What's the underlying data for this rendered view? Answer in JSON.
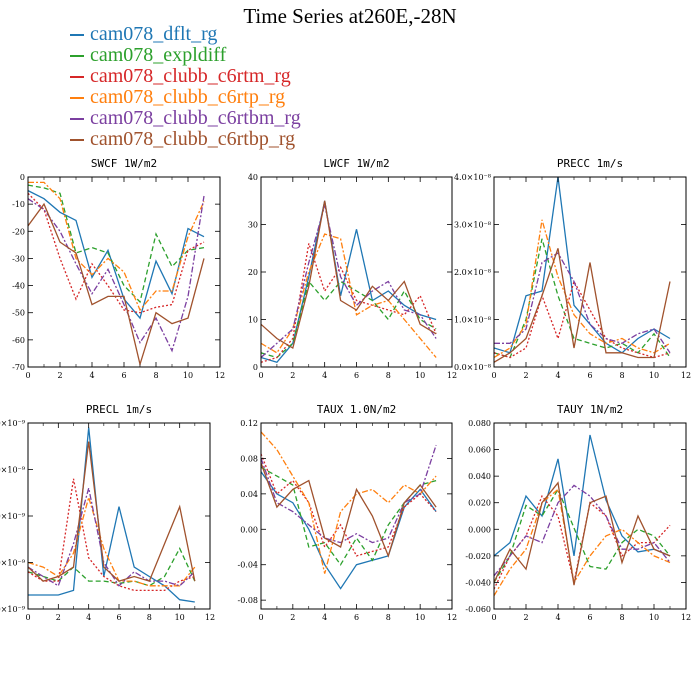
{
  "title": "Time Series at260E,-28N",
  "colors": {
    "cam078_dflt_rg": "#1f77b4",
    "cam078_expldiff": "#2ca02c",
    "cam078_clubb_c6rtm_rg": "#d62728",
    "cam078_clubb_c6rtp_rg": "#ff7f0e",
    "cam078_clubb_c6rtbm_rg": "#7b3fa0",
    "cam078_clubb_c6rtbp_rg": "#a0522d"
  },
  "legend": [
    {
      "name": "cam078_dflt_rg",
      "color": "#1f77b4"
    },
    {
      "name": "cam078_expldiff",
      "color": "#2ca02c"
    },
    {
      "name": "cam078_clubb_c6rtm_rg",
      "color": "#d62728"
    },
    {
      "name": "cam078_clubb_c6rtp_rg",
      "color": "#ff7f0e"
    },
    {
      "name": "cam078_clubb_c6rtbm_rg",
      "color": "#7b3fa0"
    },
    {
      "name": "cam078_clubb_c6rtbp_rg",
      "color": "#a0522d"
    }
  ],
  "chart_data": [
    {
      "type": "line",
      "title": "SWCF  1W/m2",
      "x": [
        0,
        1,
        2,
        3,
        4,
        5,
        6,
        7,
        8,
        9,
        10,
        11
      ],
      "xlim": [
        0,
        12
      ],
      "xticks": [
        0,
        2,
        4,
        6,
        8,
        10,
        12
      ],
      "ylim": [
        -70,
        0
      ],
      "yticks": [
        -70,
        -60,
        -50,
        -40,
        -30,
        -20,
        -10,
        0
      ],
      "ytick_labels": [
        "-70",
        "-60",
        "-50",
        "-40",
        "-30",
        "-20",
        "-10",
        "0"
      ],
      "series": [
        {
          "name": "cam078_dflt_rg",
          "style": "solid",
          "values": [
            -5,
            -8,
            -13,
            -16,
            -37,
            -27,
            -45,
            -52,
            -31,
            -43,
            -19,
            -22
          ]
        },
        {
          "name": "cam078_expldiff",
          "style": "dashed",
          "values": [
            -3,
            -4,
            -6,
            -28,
            -26,
            -28,
            -40,
            -46,
            -21,
            -33,
            -27,
            -26
          ]
        },
        {
          "name": "cam078_clubb_c6rtm_rg",
          "style": "dotted",
          "values": [
            -6,
            -12,
            -30,
            -45,
            -32,
            -40,
            -49,
            -50,
            -48,
            -47,
            -27,
            -24
          ]
        },
        {
          "name": "cam078_clubb_c6rtp_rg",
          "style": "dashdot",
          "values": [
            -2,
            -2,
            -8,
            -30,
            -36,
            -30,
            -35,
            -49,
            -42,
            -42,
            -22,
            -9
          ]
        },
        {
          "name": "cam078_clubb_c6rtbm_rg",
          "style": "dashdot",
          "values": [
            -8,
            -12,
            -20,
            -32,
            -43,
            -34,
            -47,
            -61,
            -52,
            -64,
            -44,
            -7
          ]
        },
        {
          "name": "cam078_clubb_c6rtbp_rg",
          "style": "solid",
          "values": [
            -18,
            -10,
            -24,
            -28,
            -47,
            -44,
            -44,
            -69,
            -50,
            -54,
            -52,
            -30
          ]
        }
      ]
    },
    {
      "type": "line",
      "title": "LWCF  1W/m2",
      "x": [
        0,
        1,
        2,
        3,
        4,
        5,
        6,
        7,
        8,
        9,
        10,
        11
      ],
      "xlim": [
        0,
        12
      ],
      "xticks": [
        0,
        2,
        4,
        6,
        8,
        10,
        12
      ],
      "ylim": [
        0,
        40
      ],
      "yticks": [
        0,
        10,
        20,
        30,
        40
      ],
      "ytick_labels": [
        "0",
        "10",
        "20",
        "30",
        "40"
      ],
      "series": [
        {
          "name": "cam078_dflt_rg",
          "style": "solid",
          "values": [
            2,
            1,
            5,
            19,
            35,
            15,
            29,
            14,
            16,
            13,
            11,
            10
          ]
        },
        {
          "name": "cam078_expldiff",
          "style": "dashed",
          "values": [
            3,
            2,
            5,
            18,
            14,
            18,
            16,
            14,
            10,
            16,
            10,
            8
          ]
        },
        {
          "name": "cam078_clubb_c6rtm_rg",
          "style": "dotted",
          "values": [
            1,
            2,
            6,
            26,
            16,
            21,
            14,
            13,
            12,
            11,
            15,
            7
          ]
        },
        {
          "name": "cam078_clubb_c6rtp_rg",
          "style": "dashdot",
          "values": [
            5,
            3,
            8,
            20,
            28,
            27,
            11,
            13,
            14,
            10,
            6,
            2
          ]
        },
        {
          "name": "cam078_clubb_c6rtbm_rg",
          "style": "dashdot",
          "values": [
            2,
            5,
            8,
            22,
            34,
            19,
            13,
            16,
            18,
            12,
            11,
            6
          ]
        },
        {
          "name": "cam078_clubb_c6rtbp_rg",
          "style": "solid",
          "values": [
            9,
            6,
            4,
            17,
            35,
            14,
            12,
            17,
            14,
            18,
            9,
            7
          ]
        }
      ]
    },
    {
      "type": "line",
      "title": "PRECC  1m/s",
      "x": [
        0,
        1,
        2,
        3,
        4,
        5,
        6,
        7,
        8,
        9,
        10,
        11
      ],
      "xlim": [
        0,
        12
      ],
      "xticks": [
        0,
        2,
        4,
        6,
        8,
        10,
        12
      ],
      "ylim": [
        0,
        4e-08
      ],
      "yticks": [
        0,
        1e-08,
        2e-08,
        3e-08,
        4e-08
      ],
      "ytick_labels": [
        "0.0×10⁻⁸",
        "1.0×10⁻⁸",
        "2.0×10⁻⁸",
        "3.0×10⁻⁸",
        "4.0×10⁻⁸"
      ],
      "series": [
        {
          "name": "cam078_dflt_rg",
          "style": "solid",
          "values": [
            4e-09,
            3e-09,
            1.5e-08,
            1.6e-08,
            4e-08,
            1.3e-08,
            9e-09,
            5e-09,
            3e-09,
            6e-09,
            8e-09,
            6e-09
          ]
        },
        {
          "name": "cam078_expldiff",
          "style": "dashed",
          "values": [
            3e-09,
            2e-09,
            1e-08,
            2.7e-08,
            1.5e-08,
            6e-09,
            5e-09,
            4e-09,
            5e-09,
            3e-09,
            7e-09,
            2e-09
          ]
        },
        {
          "name": "cam078_clubb_c6rtm_rg",
          "style": "dotted",
          "values": [
            3e-09,
            2e-09,
            4e-09,
            1.5e-08,
            6e-09,
            1.8e-08,
            1.2e-08,
            6e-09,
            4e-09,
            3e-09,
            2e-09,
            3e-09
          ]
        },
        {
          "name": "cam078_clubb_c6rtp_rg",
          "style": "dashdot",
          "values": [
            2e-09,
            4e-09,
            9e-09,
            3.1e-08,
            1.9e-08,
            1.1e-08,
            7e-09,
            5e-09,
            6e-09,
            4e-09,
            3e-09,
            5e-09
          ]
        },
        {
          "name": "cam078_clubb_c6rtbm_rg",
          "style": "dashdot",
          "values": [
            5e-09,
            5e-09,
            8e-09,
            2.2e-08,
            2.4e-08,
            1.8e-08,
            9e-09,
            6e-09,
            5e-09,
            7e-09,
            8e-09,
            3e-09
          ]
        },
        {
          "name": "cam078_clubb_c6rtbp_rg",
          "style": "solid",
          "values": [
            1e-09,
            3e-09,
            6e-09,
            1.5e-08,
            2.5e-08,
            4e-09,
            2.2e-08,
            3e-09,
            3e-09,
            2e-09,
            2e-09,
            1.8e-08
          ]
        }
      ]
    },
    {
      "type": "line",
      "title": "PRECL  1m/s",
      "x": [
        0,
        1,
        2,
        3,
        4,
        5,
        6,
        7,
        8,
        9,
        10,
        11
      ],
      "xlim": [
        0,
        12
      ],
      "xticks": [
        0,
        2,
        4,
        6,
        8,
        10,
        12
      ],
      "ylim": [
        0,
        4e-09
      ],
      "yticks": [
        0,
        1e-09,
        2e-09,
        3e-09,
        4e-09
      ],
      "ytick_labels": [
        "0.0×10⁻⁹",
        "1.0×10⁻⁹",
        "2.0×10⁻⁹",
        "3.0×10⁻⁹",
        "4.0×10⁻⁹"
      ],
      "series": [
        {
          "name": "cam078_dflt_rg",
          "style": "solid",
          "values": [
            3e-10,
            3e-10,
            3e-10,
            4e-10,
            3.9e-09,
            7e-10,
            2.2e-09,
            9e-10,
            7e-10,
            5e-10,
            2e-10,
            1.5e-10
          ]
        },
        {
          "name": "cam078_expldiff",
          "style": "dashed",
          "values": [
            8e-10,
            7e-10,
            6e-10,
            9e-10,
            6e-10,
            6e-10,
            5.5e-10,
            6e-10,
            5e-10,
            7e-10,
            1.3e-09,
            6e-10
          ]
        },
        {
          "name": "cam078_clubb_c6rtm_rg",
          "style": "dotted",
          "values": [
            8e-10,
            6e-10,
            6e-10,
            2.8e-09,
            1.1e-09,
            7e-10,
            5e-10,
            4e-10,
            4e-10,
            4e-10,
            6e-10,
            7e-10
          ]
        },
        {
          "name": "cam078_clubb_c6rtp_rg",
          "style": "dashdot",
          "values": [
            1e-09,
            9e-10,
            7e-10,
            1.2e-09,
            2.4e-09,
            1.3e-09,
            6e-10,
            6e-10,
            5e-10,
            5e-10,
            5e-10,
            9e-10
          ]
        },
        {
          "name": "cam078_clubb_c6rtbm_rg",
          "style": "dashdot",
          "values": [
            9e-10,
            7e-10,
            5e-10,
            1.4e-09,
            2.6e-09,
            1e-09,
            5e-10,
            8e-10,
            6e-10,
            6e-10,
            5e-10,
            8e-10
          ]
        },
        {
          "name": "cam078_clubb_c6rtbp_rg",
          "style": "solid",
          "values": [
            9e-10,
            6e-10,
            7e-10,
            9e-10,
            3.6e-09,
            9e-10,
            6e-10,
            7e-10,
            6e-10,
            1.4e-09,
            2.2e-09,
            6e-10
          ]
        }
      ]
    },
    {
      "type": "line",
      "title": "TAUX  1.0N/m2",
      "x": [
        0,
        1,
        2,
        3,
        4,
        5,
        6,
        7,
        8,
        9,
        10,
        11
      ],
      "xlim": [
        0,
        12
      ],
      "xticks": [
        0,
        2,
        4,
        6,
        8,
        10,
        12
      ],
      "ylim": [
        -0.09,
        0.12
      ],
      "yticks": [
        -0.08,
        -0.04,
        0,
        0.04,
        0.08,
        0.12
      ],
      "ytick_labels": [
        "-0.08",
        "-0.04",
        "0.00",
        "0.04",
        "0.08",
        "0.12"
      ],
      "series": [
        {
          "name": "cam078_dflt_rg",
          "style": "solid",
          "values": [
            0.065,
            0.04,
            0.03,
            0,
            -0.04,
            -0.067,
            -0.04,
            -0.035,
            -0.03,
            0.025,
            0.045,
            0.02
          ]
        },
        {
          "name": "cam078_expldiff",
          "style": "dashed",
          "values": [
            0.07,
            0.06,
            0.05,
            -0.02,
            -0.015,
            -0.04,
            -0.01,
            -0.035,
            0.005,
            0.03,
            0.05,
            0.055
          ]
        },
        {
          "name": "cam078_clubb_c6rtm_rg",
          "style": "dotted",
          "values": [
            0.085,
            0.04,
            0.055,
            0.03,
            -0.02,
            0.005,
            -0.03,
            -0.025,
            -0.02,
            0.025,
            0.04,
            0.02
          ]
        },
        {
          "name": "cam078_clubb_c6rtp_rg",
          "style": "dashdot",
          "values": [
            0.11,
            0.09,
            0.06,
            0.03,
            -0.05,
            0.02,
            0.04,
            0.045,
            0.03,
            0.05,
            0.04,
            0.06
          ]
        },
        {
          "name": "cam078_clubb_c6rtbm_rg",
          "style": "dashdot",
          "values": [
            0.08,
            0.03,
            0.02,
            0.005,
            -0.01,
            -0.015,
            -0.005,
            -0.015,
            -0.01,
            0.03,
            0.04,
            0.095
          ]
        },
        {
          "name": "cam078_clubb_c6rtbp_rg",
          "style": "solid",
          "values": [
            0.075,
            0.025,
            0.045,
            0.055,
            -0.01,
            -0.02,
            0.045,
            0.015,
            -0.03,
            0.03,
            0.05,
            0.025
          ]
        }
      ]
    },
    {
      "type": "line",
      "title": "TAUY  1N/m2",
      "x": [
        0,
        1,
        2,
        3,
        4,
        5,
        6,
        7,
        8,
        9,
        10,
        11
      ],
      "xlim": [
        0,
        12
      ],
      "xticks": [
        0,
        2,
        4,
        6,
        8,
        10,
        12
      ],
      "ylim": [
        -0.06,
        0.08
      ],
      "yticks": [
        -0.06,
        -0.04,
        -0.02,
        0,
        0.02,
        0.04,
        0.06,
        0.08
      ],
      "ytick_labels": [
        "-0.060",
        "-0.040",
        "-0.020",
        "0.000",
        "0.020",
        "0.040",
        "0.060",
        "0.080"
      ],
      "series": [
        {
          "name": "cam078_dflt_rg",
          "style": "solid",
          "values": [
            -0.02,
            -0.01,
            0.025,
            0.01,
            0.053,
            -0.02,
            0.071,
            0.022,
            -0.005,
            -0.017,
            -0.015,
            -0.02
          ]
        },
        {
          "name": "cam078_expldiff",
          "style": "dashed",
          "values": [
            -0.04,
            -0.02,
            0.018,
            0.01,
            0.03,
            0.001,
            -0.028,
            -0.03,
            -0.01,
            0.0,
            -0.005,
            -0.02
          ]
        },
        {
          "name": "cam078_clubb_c6rtm_rg",
          "style": "dotted",
          "values": [
            -0.045,
            -0.02,
            -0.005,
            0.025,
            0.01,
            -0.04,
            0.02,
            0.01,
            -0.02,
            -0.01,
            -0.01,
            0.003
          ]
        },
        {
          "name": "cam078_clubb_c6rtp_rg",
          "style": "dashdot",
          "values": [
            -0.05,
            -0.03,
            -0.015,
            0.02,
            0.03,
            -0.04,
            -0.02,
            -0.005,
            0.0,
            -0.01,
            -0.02,
            -0.025
          ]
        },
        {
          "name": "cam078_clubb_c6rtbm_rg",
          "style": "dashdot",
          "values": [
            -0.035,
            -0.02,
            -0.005,
            -0.01,
            0.02,
            0.033,
            0.025,
            0.01,
            -0.015,
            -0.015,
            -0.01,
            -0.025
          ]
        },
        {
          "name": "cam078_clubb_c6rtbp_rg",
          "style": "solid",
          "values": [
            -0.04,
            -0.015,
            -0.03,
            0.02,
            0.035,
            -0.042,
            0.02,
            0.025,
            -0.025,
            0.01,
            -0.015,
            -0.02
          ]
        }
      ]
    }
  ]
}
